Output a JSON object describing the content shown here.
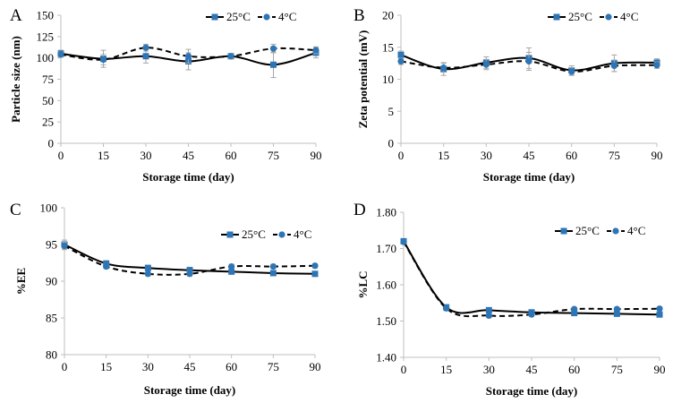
{
  "colors": {
    "line": "#000000",
    "marker": "#2e75b6",
    "error": "#a6a6a6",
    "axis": "#bfbfbf"
  },
  "chart_data": [
    {
      "panel": "A",
      "type": "line",
      "xlabel": "Storage time (day)",
      "ylabel": "Particle size (nm)",
      "x": [
        0,
        15,
        30,
        45,
        60,
        75,
        90
      ],
      "xlim": [
        0,
        90
      ],
      "ylim": [
        0,
        150
      ],
      "xticks": [
        "0",
        "15",
        "30",
        "45",
        "60",
        "75",
        "90"
      ],
      "yticks": [
        "0",
        "25",
        "50",
        "75",
        "100",
        "125",
        "150"
      ],
      "series": [
        {
          "name": "25°C",
          "style": "solid",
          "values": [
            105,
            99,
            102,
            96,
            102,
            92,
            106
          ],
          "errors": [
            4,
            10,
            8,
            10,
            3,
            15,
            6
          ]
        },
        {
          "name": "4°C",
          "style": "dashed",
          "values": [
            104,
            98,
            112,
            102,
            102,
            111,
            109
          ],
          "errors": [
            3,
            6,
            4,
            8,
            3,
            5,
            4
          ]
        }
      ]
    },
    {
      "panel": "B",
      "type": "line",
      "xlabel": "Storage time (day)",
      "ylabel": "Zeta potential (mV)",
      "x": [
        0,
        15,
        30,
        45,
        60,
        75,
        90
      ],
      "xlim": [
        0,
        90
      ],
      "ylim": [
        0,
        20
      ],
      "xticks": [
        "0",
        "15",
        "30",
        "45",
        "60",
        "75",
        "90"
      ],
      "yticks": [
        "0",
        "5",
        "10",
        "15",
        "20"
      ],
      "series": [
        {
          "name": "25°C",
          "style": "solid",
          "values": [
            13.8,
            11.6,
            12.6,
            13.3,
            11.4,
            12.5,
            12.6
          ],
          "errors": [
            0.6,
            1.0,
            0.9,
            1.6,
            0.7,
            1.3,
            0.6
          ]
        },
        {
          "name": "4°C",
          "style": "dashed",
          "values": [
            12.8,
            11.8,
            12.3,
            12.8,
            11.2,
            12.1,
            12.2
          ],
          "errors": [
            0.5,
            0.7,
            0.8,
            1.4,
            0.6,
            0.9,
            0.5
          ]
        }
      ]
    },
    {
      "panel": "C",
      "type": "line",
      "xlabel": "Storage time (day)",
      "ylabel": "%EE",
      "x": [
        0,
        15,
        30,
        45,
        60,
        75,
        90
      ],
      "xlim": [
        0,
        90
      ],
      "ylim": [
        80,
        100
      ],
      "xticks": [
        "0",
        "15",
        "30",
        "45",
        "60",
        "75",
        "90"
      ],
      "yticks": [
        "80",
        "85",
        "90",
        "95",
        "100"
      ],
      "series": [
        {
          "name": "25°C",
          "style": "solid",
          "values": [
            95.0,
            92.4,
            91.8,
            91.5,
            91.3,
            91.1,
            91.0
          ],
          "errors": [
            0.6,
            0.4,
            0.4,
            0.4,
            0.3,
            0.3,
            0.3
          ]
        },
        {
          "name": "4°C",
          "style": "dashed",
          "values": [
            94.8,
            92.0,
            91.0,
            91.0,
            92.0,
            92.0,
            92.1
          ],
          "errors": [
            0.5,
            0.3,
            0.3,
            0.3,
            0.3,
            0.3,
            0.3
          ]
        }
      ]
    },
    {
      "panel": "D",
      "type": "line",
      "xlabel": "Storage time (day)",
      "ylabel": "%LC",
      "x": [
        0,
        15,
        30,
        45,
        60,
        75,
        90
      ],
      "xlim": [
        0,
        90
      ],
      "ylim": [
        1.4,
        1.8
      ],
      "xticks": [
        "0",
        "15",
        "30",
        "45",
        "60",
        "75",
        "90"
      ],
      "yticks": [
        "1.40",
        "1.50",
        "1.60",
        "1.70",
        "1.80"
      ],
      "series": [
        {
          "name": "25°C",
          "style": "solid",
          "values": [
            1.72,
            1.538,
            1.53,
            1.524,
            1.522,
            1.52,
            1.518
          ],
          "errors": [
            0.005,
            0.006,
            0.006,
            0.005,
            0.005,
            0.005,
            0.005
          ]
        },
        {
          "name": "4°C",
          "style": "dashed",
          "values": [
            1.718,
            1.535,
            1.515,
            1.518,
            1.533,
            1.533,
            1.534
          ],
          "errors": [
            0.005,
            0.006,
            0.006,
            0.005,
            0.005,
            0.005,
            0.005
          ]
        }
      ]
    }
  ]
}
